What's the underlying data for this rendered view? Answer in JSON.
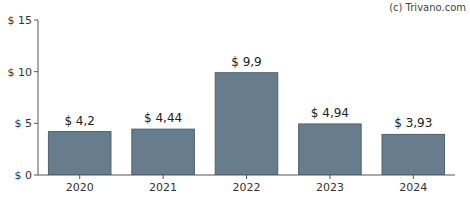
{
  "chart_data": {
    "type": "bar",
    "annotations": [
      "(c) Trivano.com"
    ],
    "categories": [
      "2020",
      "2021",
      "2022",
      "2023",
      "2024"
    ],
    "values": [
      4.2,
      4.44,
      9.9,
      4.94,
      3.93
    ],
    "value_labels": [
      "$ 4,2",
      "$ 4,44",
      "$ 9,9",
      "$ 4,94",
      "$ 3,93"
    ],
    "data_labels": true,
    "color": "#677d8d",
    "ylim": [
      0,
      15
    ],
    "yticks": [
      {
        "value": 0,
        "label": "$ 0"
      },
      {
        "value": 5,
        "label": "$ 5"
      },
      {
        "value": 10,
        "label": "$ 10"
      },
      {
        "value": 15,
        "label": "$ 15"
      }
    ],
    "grid": false
  }
}
